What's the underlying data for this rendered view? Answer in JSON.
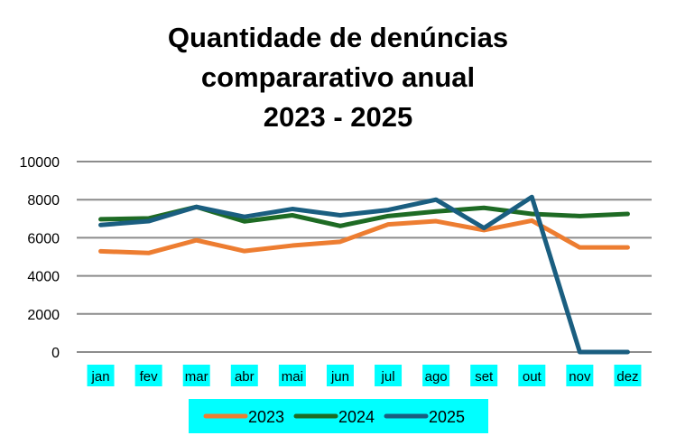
{
  "chart_data": {
    "type": "line",
    "title": [
      "Quantidade de denúncias",
      "compararativo anual",
      "2023 - 2025"
    ],
    "categories": [
      "jan",
      "fev",
      "mar",
      "abr",
      "mai",
      "jun",
      "jul",
      "ago",
      "set",
      "out",
      "nov",
      "dez"
    ],
    "series": [
      {
        "name": "2023",
        "color": "#ed7d31",
        "values": [
          5290,
          5200,
          5870,
          5300,
          5590,
          5790,
          6700,
          6870,
          6400,
          6900,
          5490,
          5490
        ]
      },
      {
        "name": "2024",
        "color": "#1e6b24",
        "values": [
          6970,
          7020,
          7620,
          6860,
          7180,
          6620,
          7140,
          7380,
          7570,
          7250,
          7140,
          7250
        ]
      },
      {
        "name": "2025",
        "color": "#1a5e80",
        "values": [
          6670,
          6870,
          7620,
          7100,
          7510,
          7180,
          7460,
          8000,
          6510,
          8140,
          0,
          0
        ]
      }
    ],
    "yticks": [
      "0",
      "2000",
      "4000",
      "6000",
      "8000",
      "10000"
    ],
    "ylim": [
      0,
      10000
    ],
    "grid": true,
    "legend": "bottom",
    "xlabel": "",
    "ylabel": ""
  }
}
